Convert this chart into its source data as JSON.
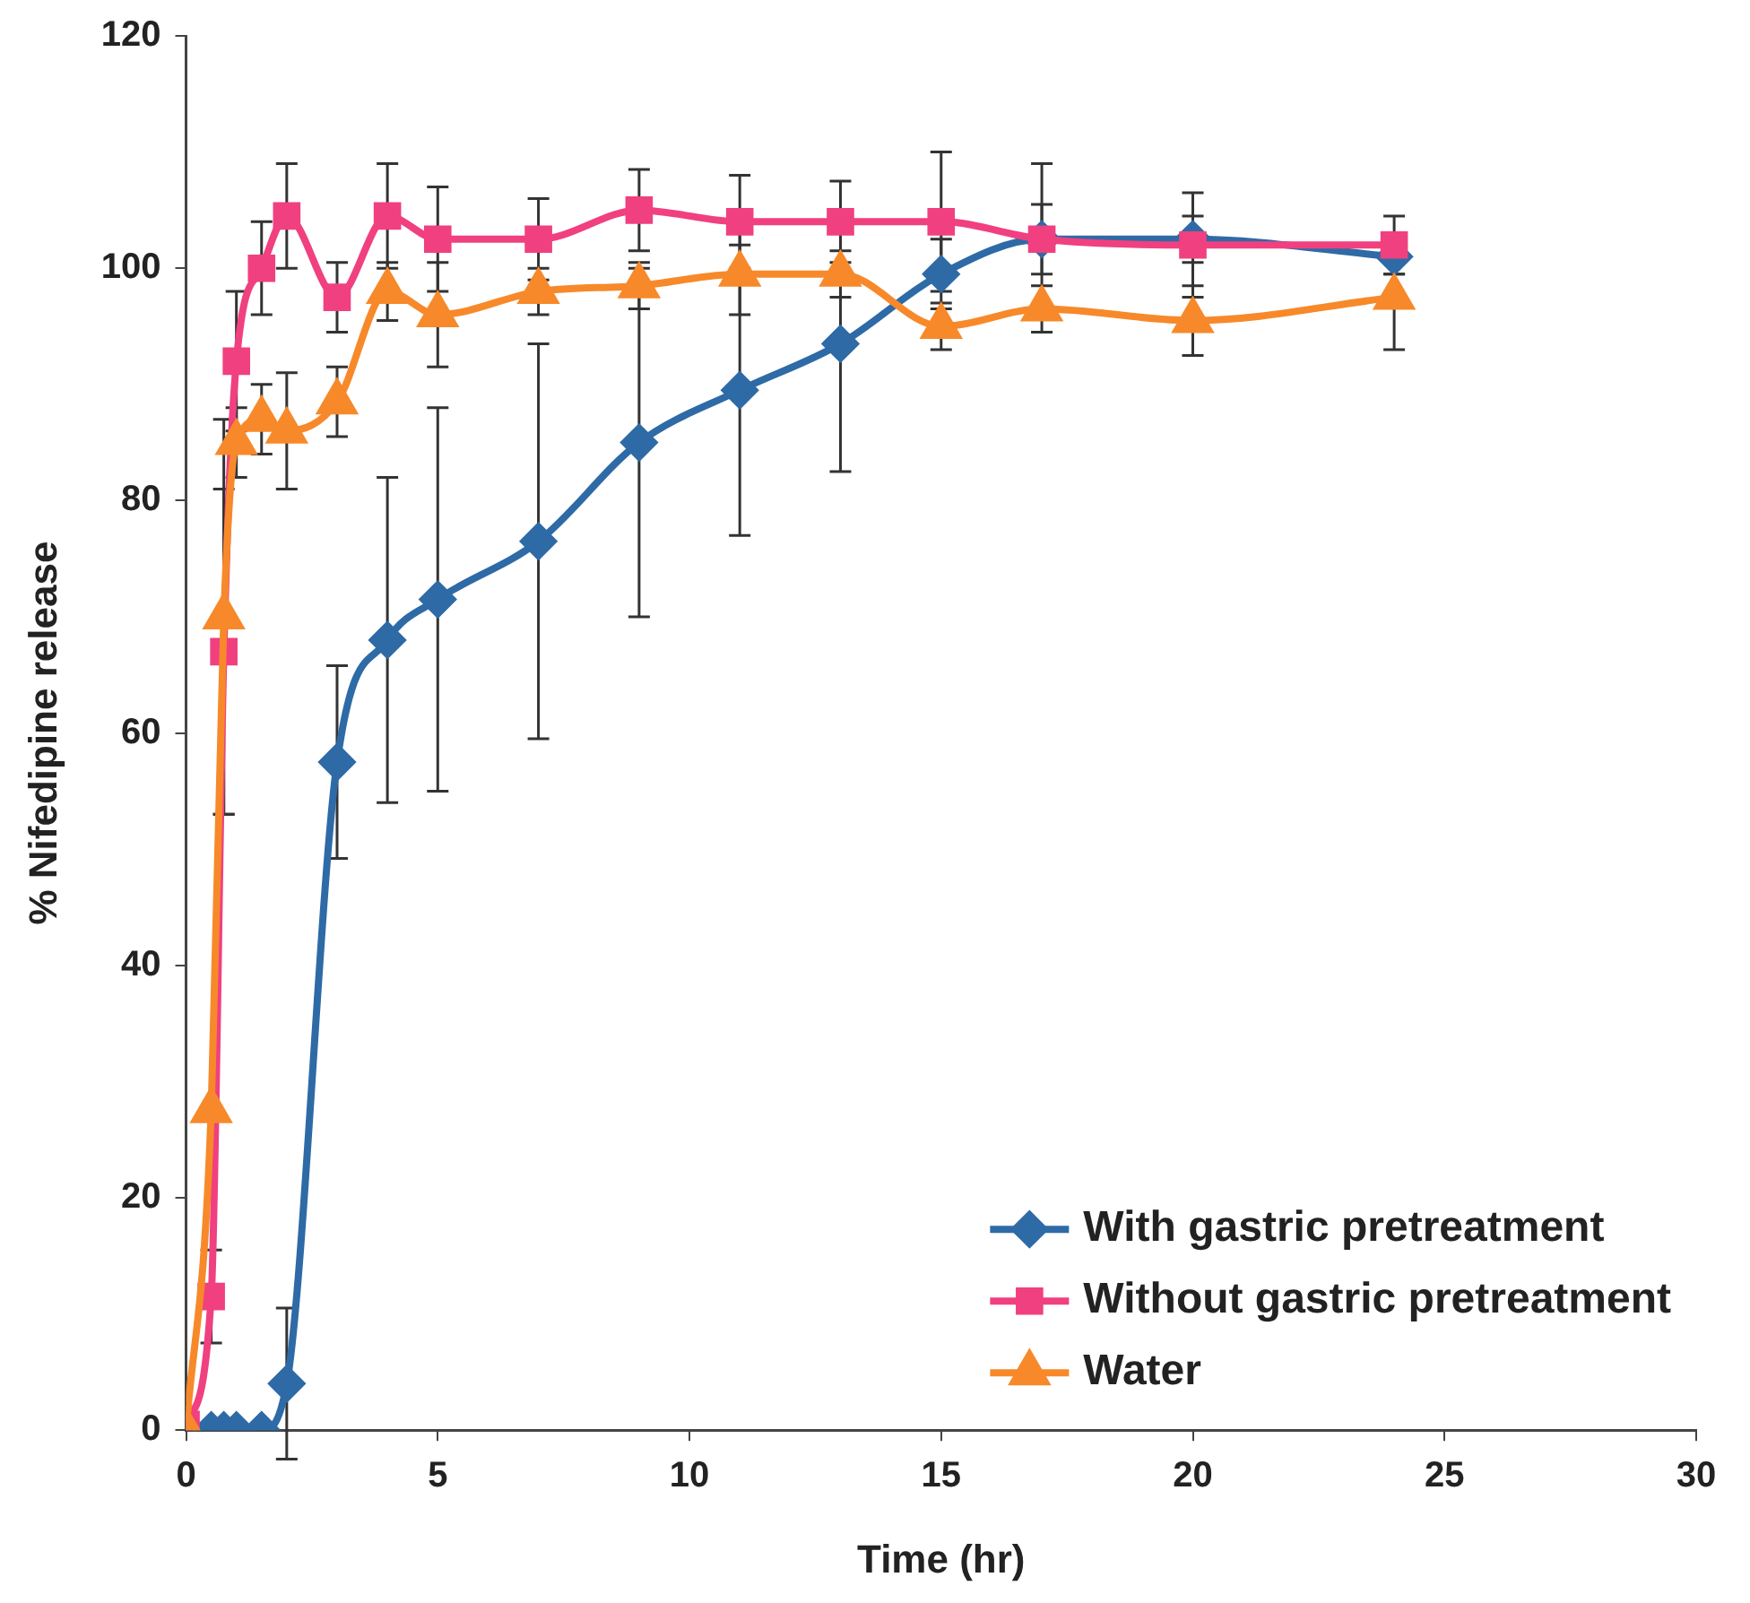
{
  "chart_data": {
    "type": "line",
    "xlabel": "Time (hr)",
    "ylabel": "% Nifedipine release",
    "x": [
      0,
      0.5,
      0.75,
      1,
      1.5,
      2,
      3,
      4,
      5,
      7,
      9,
      11,
      13,
      15,
      17,
      20,
      24
    ],
    "xlim": [
      0,
      30
    ],
    "xticks": [
      0,
      5,
      10,
      15,
      20,
      25,
      30
    ],
    "ylim": [
      0,
      120
    ],
    "yticks": [
      0,
      20,
      40,
      60,
      80,
      100,
      120
    ],
    "grid": false,
    "legend": "bottom right",
    "line_style": "solid",
    "series": [
      {
        "name": "With gastric pretreatment",
        "color": "#2e6aa6",
        "marker": "diamond",
        "values": [
          0,
          0,
          0,
          0,
          0,
          4,
          57.5,
          68,
          71.5,
          76.5,
          85,
          89.5,
          93.5,
          99.5,
          102.5,
          102.5,
          101
        ],
        "errors": [
          null,
          null,
          null,
          null,
          null,
          6.5,
          8.3,
          14,
          16.5,
          17,
          15,
          12.5,
          11,
          3,
          3,
          2,
          1.5
        ]
      },
      {
        "name": "Without gastric pretreatment",
        "color": "#f0407f",
        "marker": "square",
        "values": [
          0.5,
          11.5,
          67,
          92,
          100,
          104.5,
          97.5,
          104.5,
          102.5,
          102.5,
          105,
          104,
          104,
          104,
          102.5,
          102,
          102
        ],
        "errors": [
          null,
          4,
          14,
          6,
          4,
          4.5,
          3,
          4.5,
          4.5,
          3.5,
          3.5,
          4,
          3.5,
          6,
          6.5,
          4.5,
          2.5
        ]
      },
      {
        "name": "Water",
        "color": "#f7892a",
        "marker": "triangle",
        "values": [
          0,
          27.5,
          70,
          85,
          87,
          86,
          88.5,
          98,
          96,
          98,
          98.5,
          99.5,
          99.5,
          95,
          96.5,
          95.5,
          97.5
        ],
        "errors": [
          null,
          null,
          17,
          3,
          3,
          5,
          3,
          2.5,
          4.5,
          2,
          2,
          3.5,
          2,
          2,
          2,
          3,
          4.5
        ]
      }
    ]
  }
}
